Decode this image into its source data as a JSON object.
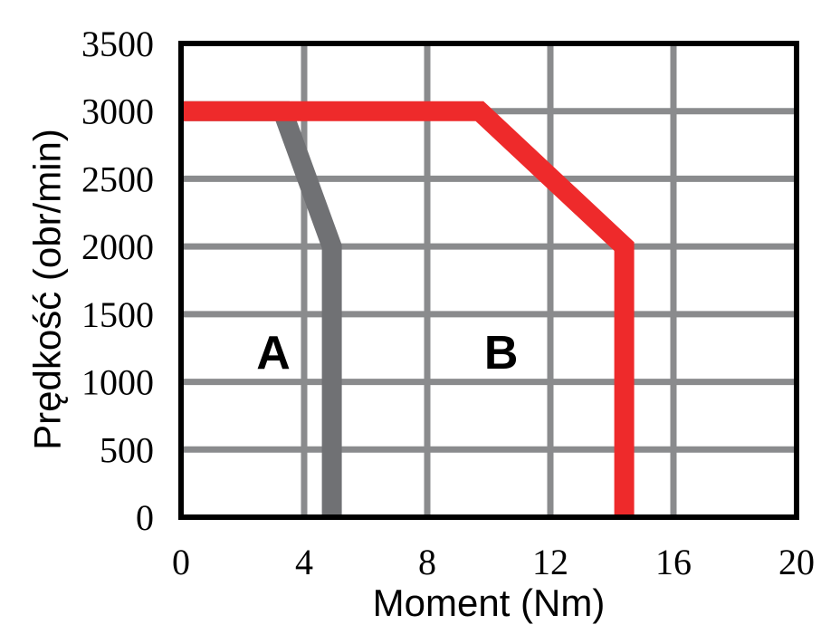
{
  "chart_data": {
    "type": "line",
    "xlabel": "Moment (Nm)",
    "ylabel": "Prędkość (obr/min)",
    "xlim": [
      0,
      20
    ],
    "ylim": [
      0,
      3500
    ],
    "x_ticks": [
      "0",
      "4",
      "8",
      "12",
      "16",
      "20"
    ],
    "y_ticks": [
      "0",
      "500",
      "1000",
      "1500",
      "2000",
      "2500",
      "3000",
      "3500"
    ],
    "grid": true,
    "series": [
      {
        "name": "A",
        "color": "#707174",
        "points": [
          [
            0,
            3000
          ],
          [
            3.3,
            3000
          ],
          [
            4.9,
            2000
          ],
          [
            4.9,
            0
          ]
        ]
      },
      {
        "name": "B",
        "color": "#ee2a2b",
        "points": [
          [
            0,
            3000
          ],
          [
            9.7,
            3000
          ],
          [
            14.4,
            2000
          ],
          [
            14.4,
            0
          ]
        ]
      }
    ]
  }
}
